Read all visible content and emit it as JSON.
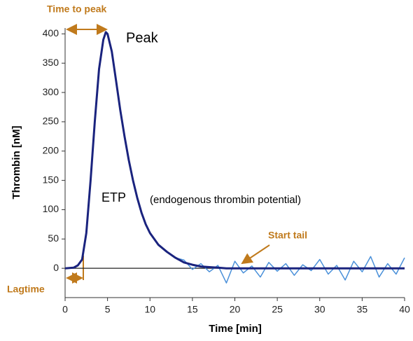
{
  "chart_data": {
    "type": "line",
    "x_label": "Time [min]",
    "y_label": "Thrombin [nM]",
    "annotations": [
      "Time to peak",
      "Peak",
      "ETP",
      "(endogenous thrombin potential)",
      "Start tail",
      "Lagtime"
    ],
    "x": [
      0,
      1,
      1.5,
      2,
      2.5,
      3,
      3.5,
      4,
      4.5,
      4.8,
      5,
      5.5,
      6,
      6.5,
      7,
      7.5,
      8,
      8.5,
      9,
      9.5,
      10,
      11,
      12,
      13,
      14,
      15,
      16,
      17,
      18,
      19,
      20,
      21,
      22,
      23,
      24,
      25,
      26,
      27,
      28,
      29,
      30,
      31,
      32,
      33,
      34,
      35,
      36,
      37,
      38,
      39,
      40
    ],
    "series": [
      {
        "color": "#4a90d9",
        "values": [
          0,
          1,
          5,
          15,
          60,
          150,
          250,
          340,
          390,
          403,
          400,
          370,
          320,
          270,
          225,
          185,
          150,
          120,
          95,
          75,
          60,
          40,
          28,
          18,
          14,
          -2,
          8,
          -6,
          5,
          -25,
          12,
          -8,
          4,
          -15,
          10,
          -5,
          8,
          -12,
          6,
          -4,
          15,
          -10,
          5,
          -20,
          12,
          -6,
          20,
          -15,
          8,
          -10,
          18
        ]
      },
      {
        "color": "#1a237e",
        "values": [
          0,
          1,
          5,
          15,
          60,
          150,
          250,
          340,
          390,
          403,
          400,
          370,
          320,
          270,
          225,
          185,
          150,
          120,
          95,
          75,
          60,
          40,
          28,
          18,
          10,
          6,
          3,
          2,
          1,
          0,
          0,
          0,
          0,
          0,
          0,
          0,
          0,
          0,
          0,
          0,
          0,
          0,
          0,
          0,
          0,
          0,
          0,
          0,
          0,
          0,
          0
        ]
      }
    ],
    "xlim": [
      0,
      40
    ],
    "xticks": [
      0,
      5,
      10,
      15,
      20,
      25,
      30,
      35,
      40
    ],
    "ylim": [
      -50,
      410
    ],
    "yticks": [
      0,
      50,
      100,
      150,
      200,
      250,
      300,
      350,
      400
    ],
    "grid": false
  }
}
